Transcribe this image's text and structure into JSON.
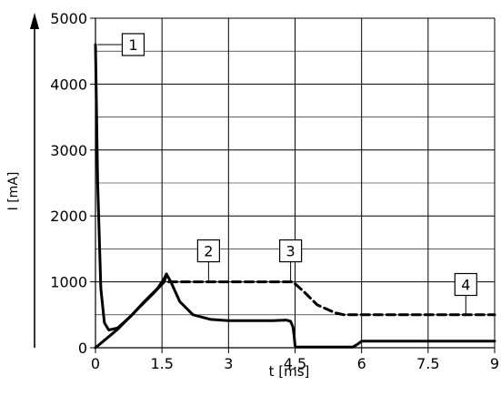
{
  "chart_data": {
    "type": "line",
    "title": "",
    "xlabel": "t [ms]",
    "ylabel": "I [mA]",
    "xlim": [
      0,
      9
    ],
    "ylim": [
      0,
      5000
    ],
    "grid": true,
    "x_ticks": [
      0,
      1.5,
      3,
      4.5,
      6,
      7.5,
      9
    ],
    "x_tick_labels": [
      "0",
      "1.5",
      "3",
      "4.5",
      "6",
      "7.5",
      "9"
    ],
    "y_ticks": [
      0,
      1000,
      2000,
      3000,
      4000,
      5000
    ],
    "y_tick_labels": [
      "0",
      "1000",
      "2000",
      "3000",
      "4000",
      "5000"
    ],
    "series": [
      {
        "style": "solid",
        "color": "#000000",
        "x": [
          0,
          0.05,
          0.12,
          0.2,
          0.3,
          0.5,
          0.8,
          1.1,
          1.4,
          1.55,
          1.6,
          1.7,
          1.9,
          2.2,
          2.6,
          3.0,
          3.5,
          4.0,
          4.3,
          4.4,
          4.45,
          4.48,
          4.5,
          4.52,
          5.0,
          5.5,
          5.8,
          5.9,
          6.0,
          6.5,
          7.5,
          9.0
        ],
        "y": [
          4600,
          2500,
          900,
          380,
          270,
          300,
          480,
          700,
          900,
          1050,
          1120,
          1000,
          700,
          500,
          430,
          410,
          410,
          410,
          420,
          400,
          320,
          180,
          30,
          10,
          10,
          10,
          10,
          50,
          100,
          100,
          100,
          100
        ]
      },
      {
        "style": "solid",
        "color": "#000000",
        "x": [
          0,
          0.5,
          1.0,
          1.3,
          1.55,
          1.6
        ],
        "y": [
          0,
          280,
          620,
          820,
          1000,
          1100
        ]
      },
      {
        "style": "dashed",
        "color": "#000000",
        "x": [
          1.65,
          2.0,
          3.0,
          4.0,
          4.45,
          4.7,
          5.0,
          5.4,
          5.6,
          6.5,
          9.0
        ],
        "y": [
          1000,
          1000,
          1000,
          1000,
          1000,
          850,
          650,
          530,
          500,
          500,
          500
        ]
      }
    ],
    "annotations": [
      {
        "label": "1",
        "x": 0.05,
        "y": 4600,
        "box_x": 0.85,
        "box_y": 4600
      },
      {
        "label": "2",
        "x": 2.55,
        "y": 1000,
        "box_x": 2.55,
        "box_y": 1470
      },
      {
        "label": "3",
        "x": 4.4,
        "y": 1000,
        "box_x": 4.4,
        "box_y": 1470
      },
      {
        "label": "4",
        "x": 8.35,
        "y": 500,
        "box_x": 8.35,
        "box_y": 960
      }
    ]
  }
}
